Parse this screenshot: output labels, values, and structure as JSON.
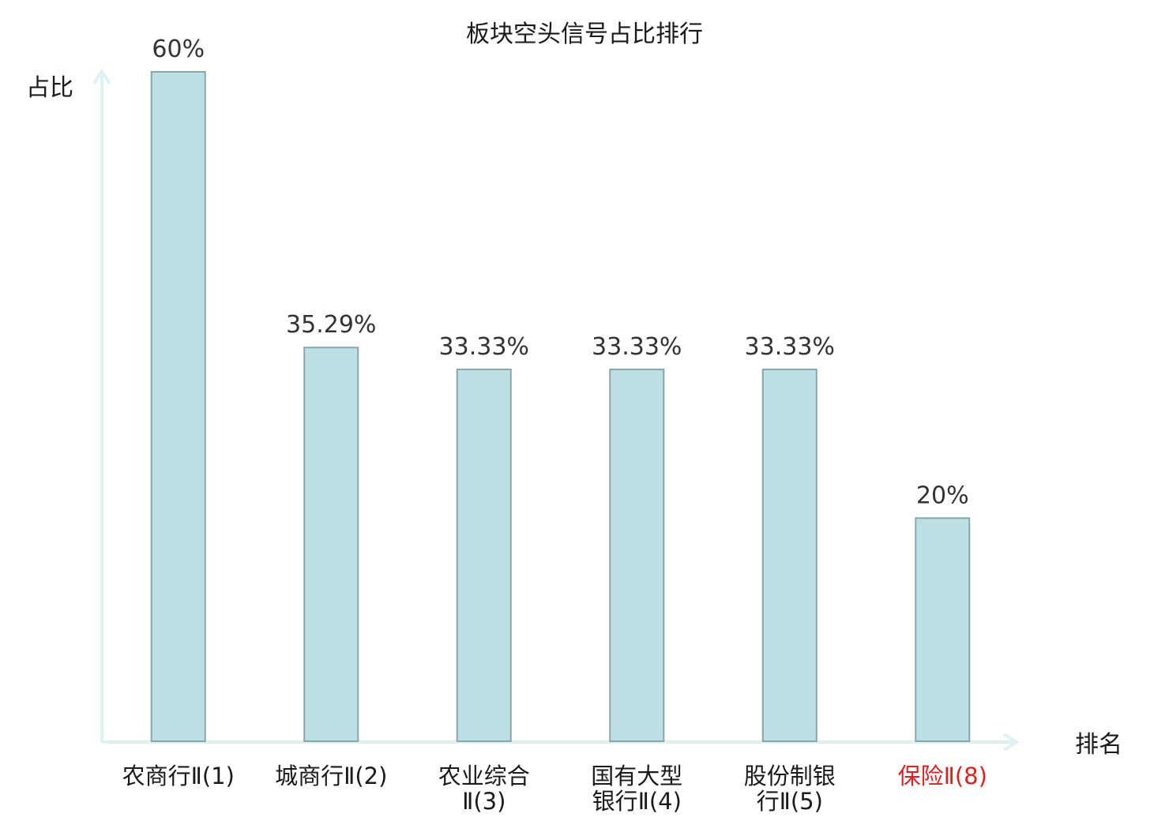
{
  "chart_data": {
    "type": "bar",
    "title": "板块空头信号占比排行",
    "ylabel": "占比",
    "xlabel": "排名",
    "categories": [
      [
        "农商行Ⅱ(1)"
      ],
      [
        "城商行Ⅱ(2)"
      ],
      [
        "农业综合",
        "Ⅱ(3)"
      ],
      [
        "国有大型",
        "银行Ⅱ(4)"
      ],
      [
        "股份制银",
        "行Ⅱ(5)"
      ],
      [
        "保险Ⅱ(8)"
      ]
    ],
    "highlight_category_index": 5,
    "values": [
      60,
      35.29,
      33.33,
      33.33,
      33.33,
      20
    ],
    "value_labels": [
      "60%",
      "35.29%",
      "33.33%",
      "33.33%",
      "33.33%",
      "20%"
    ],
    "ylim": [
      0,
      60
    ],
    "grid": false,
    "legend": "none",
    "colors": {
      "bar_fill": "#bce0e3",
      "bar_stroke": "#8aa6a9",
      "axis": "#dff2ef",
      "category_text": "#1a1a1a",
      "highlight_text": "#e02020"
    }
  }
}
